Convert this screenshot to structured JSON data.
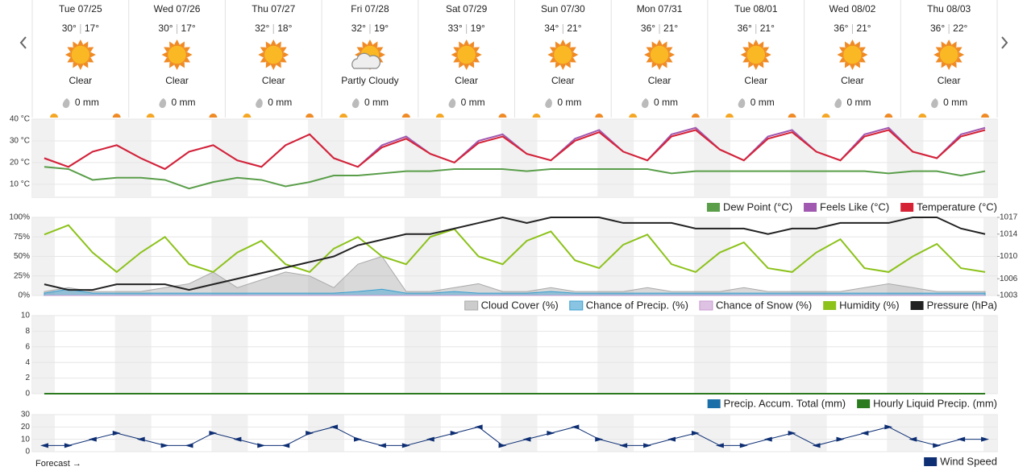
{
  "days": [
    {
      "day": "Tue 07/25",
      "high": "30°",
      "low": "17°",
      "condition": "Clear",
      "precip": "0 mm"
    },
    {
      "day": "Wed 07/26",
      "high": "30°",
      "low": "17°",
      "condition": "Clear",
      "precip": "0 mm"
    },
    {
      "day": "Thu 07/27",
      "high": "32°",
      "low": "18°",
      "condition": "Clear",
      "precip": "0 mm"
    },
    {
      "day": "Fri 07/28",
      "high": "32°",
      "low": "19°",
      "condition": "Partly Cloudy",
      "precip": "0 mm"
    },
    {
      "day": "Sat 07/29",
      "high": "33°",
      "low": "19°",
      "condition": "Clear",
      "precip": "0 mm"
    },
    {
      "day": "Sun 07/30",
      "high": "34°",
      "low": "21°",
      "condition": "Clear",
      "precip": "0 mm"
    },
    {
      "day": "Mon 07/31",
      "high": "36°",
      "low": "21°",
      "condition": "Clear",
      "precip": "0 mm"
    },
    {
      "day": "Tue 08/01",
      "high": "36°",
      "low": "21°",
      "condition": "Clear",
      "precip": "0 mm"
    },
    {
      "day": "Wed 08/02",
      "high": "36°",
      "low": "21°",
      "condition": "Clear",
      "precip": "0 mm"
    },
    {
      "day": "Thu 08/03",
      "high": "36°",
      "low": "22°",
      "condition": "Clear",
      "precip": "0 mm"
    }
  ],
  "forecast_label": "Forecast →",
  "chart_data": [
    {
      "type": "line",
      "ylim": [
        4,
        40
      ],
      "yticks": [
        {
          "value": 10,
          "label": "10 °C"
        },
        {
          "value": 20,
          "label": "20 °C"
        },
        {
          "value": 30,
          "label": "30 °C"
        },
        {
          "value": 40,
          "label": "40 °C"
        }
      ],
      "series": [
        {
          "name": "Dew Point (°C)",
          "color": "#5a9e4a",
          "style": "line",
          "values": [
            18,
            17,
            12,
            13,
            13,
            12,
            8,
            11,
            13,
            12,
            9,
            11,
            14,
            14,
            15,
            16,
            16,
            17,
            17,
            17,
            16,
            17,
            17,
            17,
            17,
            17,
            15,
            16,
            16,
            16,
            16,
            16,
            16,
            16,
            16,
            15,
            16,
            16,
            14,
            16
          ]
        },
        {
          "name": "Feels Like (°C)",
          "color": "#a058b0",
          "style": "line",
          "values": [
            22,
            18,
            25,
            28,
            22,
            17,
            25,
            28,
            21,
            18,
            28,
            33,
            22,
            18,
            28,
            32,
            24,
            20,
            30,
            33,
            24,
            21,
            31,
            35,
            25,
            21,
            33,
            36,
            26,
            21,
            32,
            35,
            25,
            21,
            33,
            36,
            25,
            22,
            33,
            36
          ]
        },
        {
          "name": "Temperature (°C)",
          "color": "#d62235",
          "style": "line",
          "values": [
            22,
            18,
            25,
            28,
            22,
            17,
            25,
            28,
            21,
            18,
            28,
            33,
            22,
            18,
            27,
            31,
            24,
            20,
            29,
            32,
            24,
            21,
            30,
            34,
            25,
            21,
            32,
            35,
            26,
            21,
            31,
            34,
            25,
            21,
            32,
            35,
            25,
            22,
            32,
            35
          ]
        }
      ]
    },
    {
      "type": "line",
      "ylim": [
        0,
        100
      ],
      "yticks": [
        {
          "value": 0,
          "label": "0%"
        },
        {
          "value": 25,
          "label": "25%"
        },
        {
          "value": 50,
          "label": "50%"
        },
        {
          "value": 75,
          "label": "75%"
        },
        {
          "value": 100,
          "label": "100%"
        }
      ],
      "y2lim": [
        1003,
        1017
      ],
      "y2ticks": [
        1017,
        1014,
        1010,
        1006,
        1003
      ],
      "series": [
        {
          "name": "Cloud Cover (%)",
          "color": "#aaaaaa",
          "style": "area",
          "values": [
            5,
            10,
            5,
            5,
            5,
            10,
            15,
            30,
            10,
            20,
            30,
            25,
            10,
            40,
            50,
            5,
            5,
            10,
            15,
            5,
            5,
            10,
            5,
            5,
            5,
            10,
            5,
            5,
            5,
            10,
            5,
            5,
            5,
            5,
            10,
            15,
            10,
            5,
            5,
            5
          ]
        },
        {
          "name": "Chance of Precip. (%)",
          "color": "#3a9fd0",
          "style": "area",
          "values": [
            3,
            8,
            3,
            3,
            3,
            3,
            3,
            3,
            3,
            3,
            3,
            3,
            3,
            5,
            8,
            3,
            3,
            5,
            3,
            3,
            3,
            5,
            3,
            3,
            3,
            3,
            3,
            3,
            3,
            3,
            3,
            3,
            3,
            3,
            3,
            3,
            3,
            3,
            3,
            3
          ]
        },
        {
          "name": "Chance of Snow (%)",
          "color": "#c89ad0",
          "style": "area",
          "values": [
            0,
            0,
            0,
            0,
            0,
            0,
            0,
            0,
            0,
            0,
            0,
            0,
            0,
            0,
            0,
            0,
            0,
            0,
            0,
            0,
            0,
            0,
            0,
            0,
            0,
            0,
            0,
            0,
            0,
            0,
            0,
            0,
            0,
            0,
            0,
            0,
            0,
            0,
            0,
            0
          ]
        },
        {
          "name": "Humidity (%)",
          "color": "#8cc21a",
          "style": "line",
          "values": [
            78,
            90,
            55,
            30,
            55,
            75,
            40,
            30,
            55,
            70,
            40,
            30,
            60,
            75,
            50,
            40,
            75,
            85,
            50,
            40,
            70,
            82,
            45,
            35,
            65,
            78,
            40,
            30,
            55,
            68,
            35,
            30,
            55,
            72,
            35,
            30,
            50,
            66,
            35,
            30
          ]
        },
        {
          "name": "Pressure (hPa)",
          "color": "#222222",
          "style": "line",
          "axis": "y2",
          "values": [
            1005,
            1004,
            1004,
            1005,
            1005,
            1005,
            1004,
            1005,
            1006,
            1007,
            1008,
            1009,
            1010,
            1012,
            1013,
            1014,
            1014,
            1015,
            1016,
            1017,
            1016,
            1017,
            1017,
            1017,
            1016,
            1016,
            1016,
            1015,
            1015,
            1015,
            1014,
            1015,
            1015,
            1016,
            1016,
            1016,
            1017,
            1017,
            1015,
            1014
          ]
        }
      ]
    },
    {
      "type": "line",
      "ylim": [
        0,
        10
      ],
      "yticks": [
        0,
        2,
        4,
        6,
        8,
        10
      ],
      "series": [
        {
          "name": "Precip. Accum. Total (mm)",
          "color": "#1a6fa8",
          "style": "line",
          "values": [
            0,
            0,
            0,
            0,
            0,
            0,
            0,
            0,
            0,
            0,
            0,
            0,
            0,
            0,
            0,
            0,
            0,
            0,
            0,
            0,
            0,
            0,
            0,
            0,
            0,
            0,
            0,
            0,
            0,
            0,
            0,
            0,
            0,
            0,
            0,
            0,
            0,
            0,
            0,
            0
          ]
        },
        {
          "name": "Hourly Liquid Precip. (mm)",
          "color": "#2b7a1f",
          "style": "line",
          "values": [
            0,
            0,
            0,
            0,
            0,
            0,
            0,
            0,
            0,
            0,
            0,
            0,
            0,
            0,
            0,
            0,
            0,
            0,
            0,
            0,
            0,
            0,
            0,
            0,
            0,
            0,
            0,
            0,
            0,
            0,
            0,
            0,
            0,
            0,
            0,
            0,
            0,
            0,
            0,
            0
          ]
        }
      ]
    },
    {
      "type": "line",
      "ylim": [
        0,
        30
      ],
      "yticks": [
        0,
        10,
        20,
        30
      ],
      "series": [
        {
          "name": "Wind Speed",
          "color": "#0d2e73",
          "style": "arrows",
          "values": [
            5,
            5,
            10,
            15,
            10,
            5,
            5,
            15,
            10,
            5,
            5,
            15,
            20,
            10,
            5,
            5,
            10,
            15,
            20,
            5,
            10,
            15,
            20,
            10,
            5,
            5,
            10,
            15,
            5,
            5,
            10,
            15,
            5,
            10,
            15,
            20,
            10,
            5,
            10,
            10
          ]
        }
      ]
    }
  ]
}
